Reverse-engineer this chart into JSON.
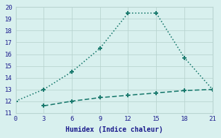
{
  "line1_x": [
    0,
    3,
    6,
    9,
    12,
    15,
    18,
    21
  ],
  "line1_y": [
    12,
    13,
    14.5,
    16.5,
    19.5,
    19.5,
    15.7,
    13
  ],
  "line2_x": [
    3,
    6,
    9,
    12,
    15,
    18,
    21
  ],
  "line2_y": [
    11.6,
    12.0,
    12.3,
    12.5,
    12.7,
    12.9,
    13.0
  ],
  "line_color": "#1a7a6e",
  "bg_color": "#d8f0ee",
  "grid_color_major": "#c0d8d8",
  "grid_color_minor": "#e0eeee",
  "xlabel": "Humidex (Indice chaleur)",
  "xlim": [
    0,
    21
  ],
  "ylim": [
    11,
    20
  ],
  "xticks": [
    0,
    3,
    6,
    9,
    12,
    15,
    18,
    21
  ],
  "yticks": [
    11,
    12,
    13,
    14,
    15,
    16,
    17,
    18,
    19,
    20
  ],
  "marker": "+"
}
